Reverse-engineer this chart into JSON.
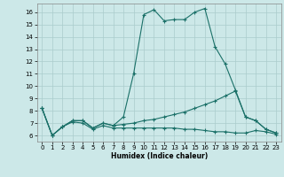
{
  "xlabel": "Humidex (Indice chaleur)",
  "bg_color": "#cce8e8",
  "grid_color": "#aacccc",
  "line_color": "#1a7068",
  "xlim": [
    -0.5,
    23.5
  ],
  "ylim": [
    5.5,
    16.7
  ],
  "xticks": [
    0,
    1,
    2,
    3,
    4,
    5,
    6,
    7,
    8,
    9,
    10,
    11,
    12,
    13,
    14,
    15,
    16,
    17,
    18,
    19,
    20,
    21,
    22,
    23
  ],
  "yticks": [
    6,
    7,
    8,
    9,
    10,
    11,
    12,
    13,
    14,
    15,
    16
  ],
  "line1_x": [
    0,
    1,
    2,
    3,
    4,
    5,
    6,
    7,
    8,
    9,
    10,
    11,
    12,
    13,
    14,
    15,
    16,
    17,
    18,
    19,
    20,
    21,
    22,
    23
  ],
  "line1_y": [
    8.2,
    6.0,
    6.7,
    7.2,
    7.2,
    6.6,
    7.0,
    6.8,
    7.5,
    11.0,
    15.8,
    16.2,
    15.3,
    15.4,
    15.4,
    16.0,
    16.3,
    13.2,
    11.8,
    9.7,
    7.5,
    7.2,
    6.5,
    6.2
  ],
  "line2_x": [
    0,
    1,
    2,
    3,
    4,
    5,
    6,
    7,
    8,
    9,
    10,
    11,
    12,
    13,
    14,
    15,
    16,
    17,
    18,
    19,
    20,
    21,
    22,
    23
  ],
  "line2_y": [
    8.2,
    6.0,
    6.7,
    7.2,
    7.2,
    6.6,
    7.0,
    6.8,
    6.9,
    7.0,
    7.2,
    7.3,
    7.5,
    7.7,
    7.9,
    8.2,
    8.5,
    8.8,
    9.2,
    9.6,
    7.5,
    7.2,
    6.5,
    6.2
  ],
  "line3_x": [
    0,
    1,
    2,
    3,
    4,
    5,
    6,
    7,
    8,
    9,
    10,
    11,
    12,
    13,
    14,
    15,
    16,
    17,
    18,
    19,
    20,
    21,
    22,
    23
  ],
  "line3_y": [
    8.2,
    6.0,
    6.7,
    7.1,
    7.0,
    6.5,
    6.8,
    6.6,
    6.6,
    6.6,
    6.6,
    6.6,
    6.6,
    6.6,
    6.5,
    6.5,
    6.4,
    6.3,
    6.3,
    6.2,
    6.2,
    6.4,
    6.3,
    6.1
  ],
  "marker": "+",
  "markersize": 2.5,
  "linewidth": 0.8
}
